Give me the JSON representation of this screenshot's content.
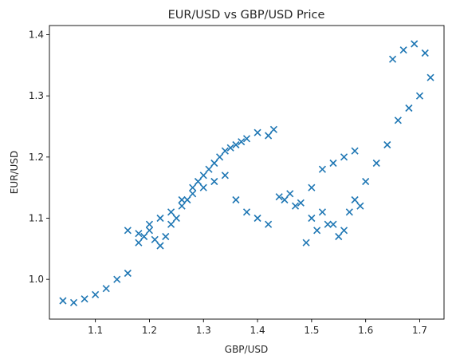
{
  "chart_data": {
    "type": "scatter",
    "title": "EUR/USD vs GBP/USD Price",
    "xlabel": "GBP/USD",
    "ylabel": "EUR/USD",
    "xlim": [
      1.015,
      1.745
    ],
    "ylim": [
      0.935,
      1.415
    ],
    "x_ticks": [
      1.1,
      1.2,
      1.3,
      1.4,
      1.5,
      1.6,
      1.7
    ],
    "y_ticks": [
      1.0,
      1.1,
      1.2,
      1.3,
      1.4
    ],
    "x_tick_labels": [
      "1.1",
      "1.2",
      "1.3",
      "1.4",
      "1.5",
      "1.6",
      "1.7"
    ],
    "y_tick_labels": [
      "1.0",
      "1.1",
      "1.2",
      "1.3",
      "1.4"
    ],
    "grid": false,
    "marker": "x",
    "color": "#1f77b4",
    "series": [
      {
        "x": [
          1.04,
          1.06,
          1.08,
          1.1,
          1.12,
          1.14,
          1.16,
          1.18,
          1.19,
          1.2,
          1.21,
          1.22,
          1.23,
          1.24,
          1.25,
          1.26,
          1.27,
          1.28,
          1.29,
          1.3,
          1.31,
          1.32,
          1.33,
          1.34,
          1.35,
          1.36,
          1.37,
          1.38,
          1.4,
          1.42,
          1.43,
          1.16,
          1.18,
          1.2,
          1.22,
          1.24,
          1.26,
          1.28,
          1.3,
          1.32,
          1.34,
          1.36,
          1.38,
          1.4,
          1.42,
          1.45,
          1.47,
          1.49,
          1.51,
          1.53,
          1.55,
          1.57,
          1.59,
          1.44,
          1.46,
          1.48,
          1.5,
          1.52,
          1.54,
          1.56,
          1.58,
          1.5,
          1.52,
          1.54,
          1.56,
          1.58,
          1.6,
          1.62,
          1.64,
          1.66,
          1.68,
          1.7,
          1.72,
          1.65,
          1.67,
          1.69,
          1.71
        ],
        "y": [
          0.965,
          0.962,
          0.968,
          0.975,
          0.985,
          1.0,
          1.01,
          1.06,
          1.07,
          1.08,
          1.065,
          1.055,
          1.07,
          1.09,
          1.1,
          1.12,
          1.13,
          1.15,
          1.16,
          1.17,
          1.18,
          1.19,
          1.2,
          1.21,
          1.215,
          1.22,
          1.225,
          1.23,
          1.24,
          1.235,
          1.245,
          1.08,
          1.075,
          1.09,
          1.1,
          1.11,
          1.13,
          1.14,
          1.15,
          1.16,
          1.17,
          1.13,
          1.11,
          1.1,
          1.09,
          1.13,
          1.12,
          1.06,
          1.08,
          1.09,
          1.07,
          1.11,
          1.12,
          1.135,
          1.14,
          1.125,
          1.15,
          1.18,
          1.19,
          1.2,
          1.21,
          1.1,
          1.11,
          1.09,
          1.08,
          1.13,
          1.16,
          1.19,
          1.22,
          1.26,
          1.28,
          1.3,
          1.33,
          1.36,
          1.375,
          1.385,
          1.37
        ]
      }
    ]
  }
}
